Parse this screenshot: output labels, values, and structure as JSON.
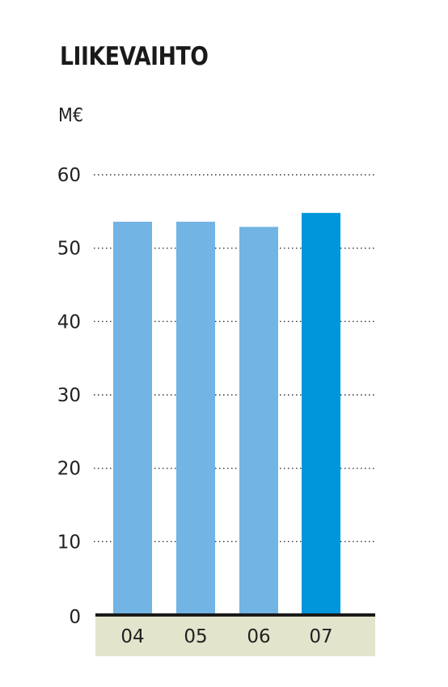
{
  "chart_data": {
    "type": "bar",
    "title": "LIIKEVAIHTO",
    "ylabel": "M€",
    "xlabel": "",
    "categories": [
      "04",
      "05",
      "06",
      "07"
    ],
    "values": [
      53.6,
      53.6,
      52.9,
      54.8
    ],
    "ylim": [
      0,
      60
    ],
    "yticks": [
      0,
      10,
      20,
      30,
      40,
      50,
      60
    ],
    "grid": true,
    "highlight_index": 3,
    "colors": {
      "bar": "#72b4e4",
      "bar_highlight": "#0096db",
      "axis": "#1a1a1a",
      "grid": "#333333",
      "category_band": "#e3e4cc"
    }
  }
}
